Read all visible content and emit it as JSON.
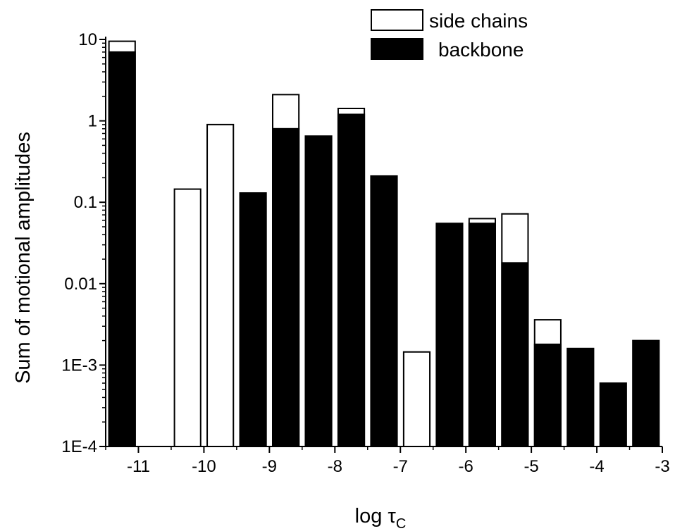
{
  "chart_data": {
    "type": "bar",
    "stacked": true,
    "xlabel": "log τc",
    "xlabel_main": "log τ",
    "xlabel_sub": "C",
    "ylabel": "Sum of motional amplitudes",
    "yscale": "log",
    "xlim": [
      -11.5,
      -3
    ],
    "ylim": [
      0.0001,
      10
    ],
    "bar_width": 0.4,
    "x_ticks": [
      -11,
      -10,
      -9,
      -8,
      -7,
      -6,
      -5,
      -4,
      -3
    ],
    "x_tick_labels": [
      "-11",
      "-10",
      "-9",
      "-8",
      "-7",
      "-6",
      "-5",
      "-4",
      "-3"
    ],
    "y_ticks": [
      0.0001,
      0.001,
      0.01,
      0.1,
      1,
      10
    ],
    "y_tick_labels": [
      "1E-4",
      "1E-3",
      "0.01",
      "0.1",
      "1",
      "10"
    ],
    "grid": false,
    "legend_position": "top-right",
    "x": [
      -11.25,
      -10.25,
      -9.75,
      -9.25,
      -8.75,
      -8.25,
      -7.75,
      -7.25,
      -6.75,
      -6.25,
      -5.75,
      -5.25,
      -4.75,
      -4.25,
      -3.75,
      -3.25
    ],
    "series": [
      {
        "name": "backbone",
        "color": "#000000",
        "values": [
          7.0,
          0,
          0,
          0.13,
          0.8,
          0.65,
          1.2,
          0.21,
          0,
          0.055,
          0.055,
          0.018,
          0.0018,
          0.0016,
          0.0006,
          0.002
        ]
      },
      {
        "name": "side chains",
        "color": "#ffffff",
        "totals": [
          9.5,
          0.145,
          0.9,
          0.13,
          2.1,
          0.65,
          1.42,
          0.21,
          0.00145,
          0.055,
          0.063,
          0.072,
          0.0036,
          0.0016,
          0.0006,
          0.002
        ]
      }
    ]
  }
}
